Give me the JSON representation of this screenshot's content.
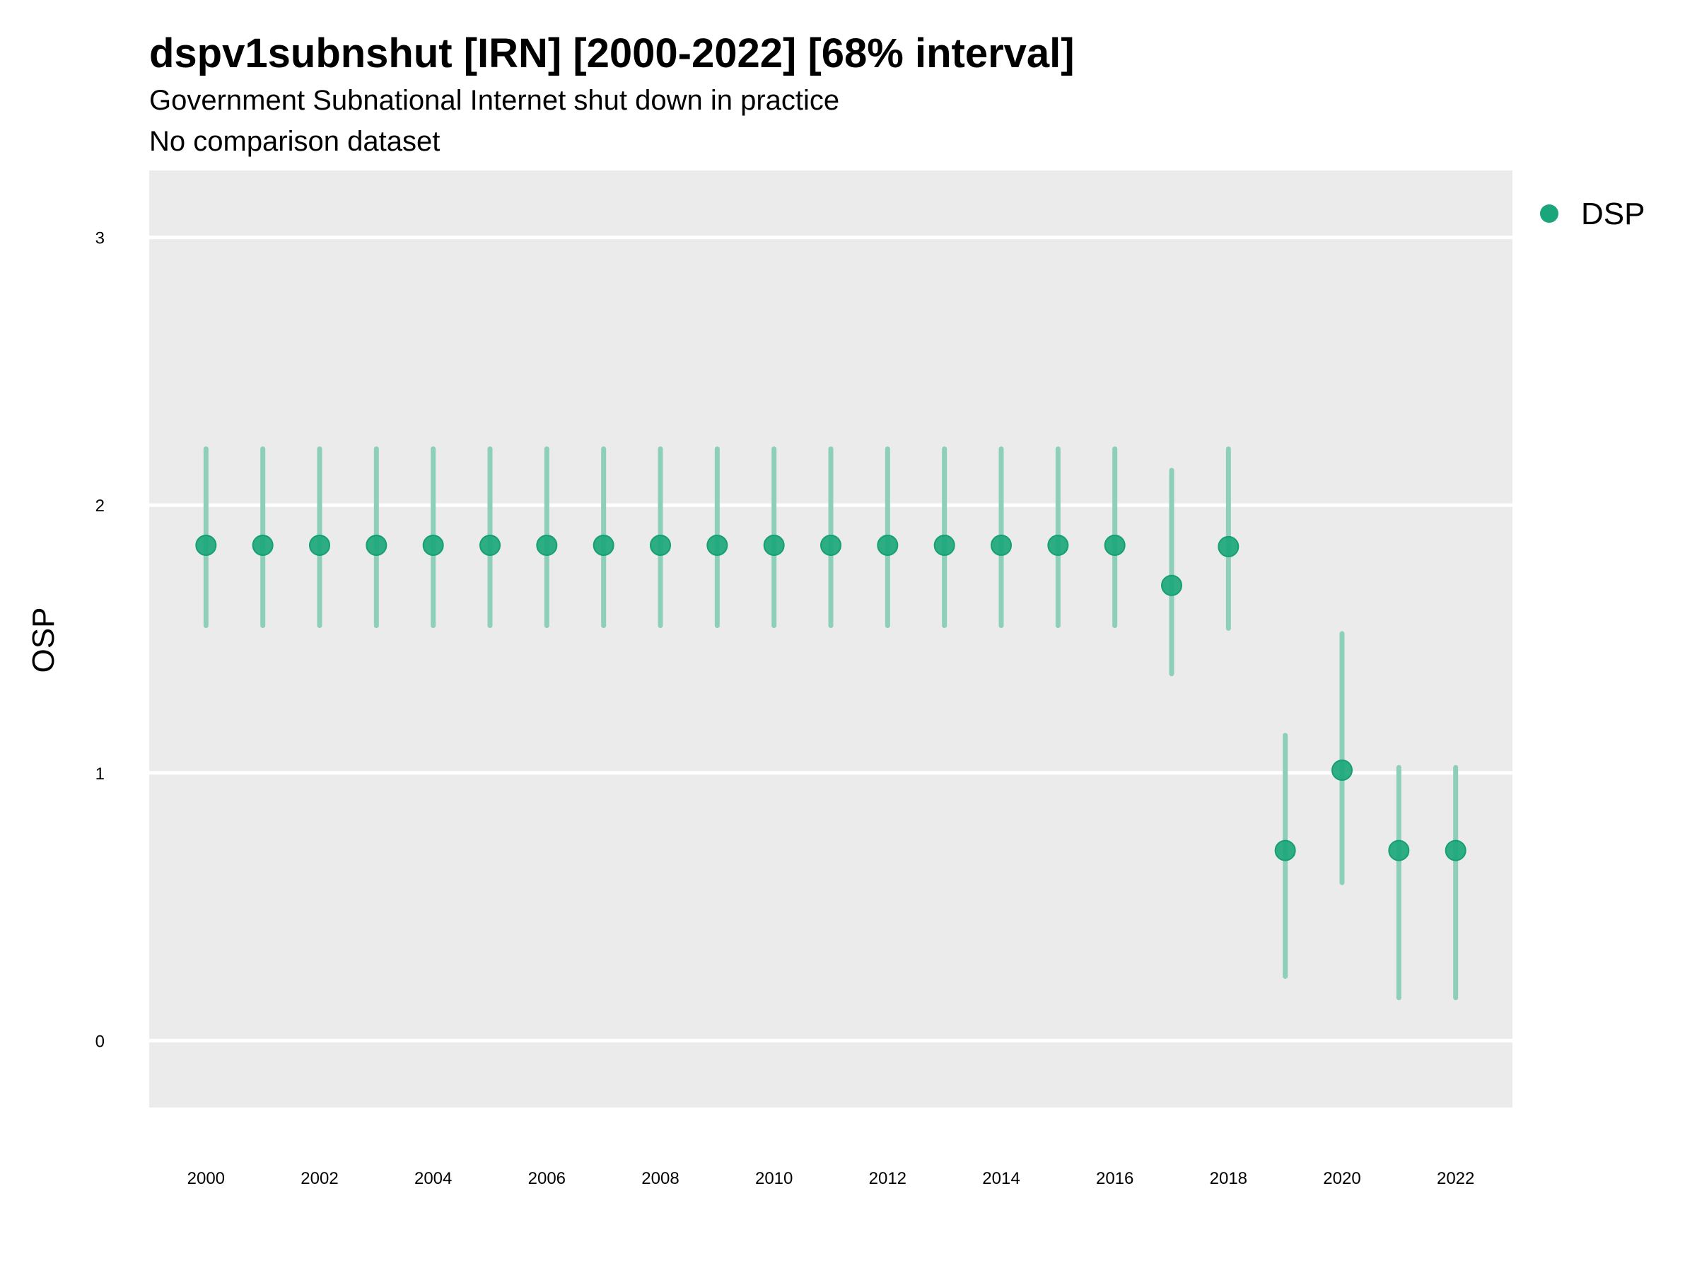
{
  "chart_data": {
    "type": "scatter",
    "title": "dspv1subnshut [IRN] [2000-2022] [68% interval]",
    "subtitle": "Government Subnational Internet shut down in practice",
    "caption": "No comparison dataset",
    "xlabel": "",
    "ylabel": "OSP",
    "xlim": [
      1999,
      2023
    ],
    "ylim": [
      -0.25,
      3.25
    ],
    "x_ticks": [
      "2000",
      "2002",
      "2004",
      "2006",
      "2008",
      "2010",
      "2012",
      "2014",
      "2016",
      "2018",
      "2020",
      "2022"
    ],
    "y_ticks": [
      "0",
      "1",
      "2",
      "3"
    ],
    "grid": true,
    "legend_position": "top-right",
    "colors": {
      "point": "#1aa67a",
      "interval": "#8ecfba",
      "panel": "#ebebeb",
      "grid": "#ffffff"
    },
    "series": [
      {
        "name": "DSP",
        "x": [
          2000,
          2001,
          2002,
          2003,
          2004,
          2005,
          2006,
          2007,
          2008,
          2009,
          2010,
          2011,
          2012,
          2013,
          2014,
          2015,
          2016,
          2017,
          2018,
          2019,
          2020,
          2021,
          2022
        ],
        "y": [
          1.85,
          1.85,
          1.85,
          1.85,
          1.85,
          1.85,
          1.85,
          1.85,
          1.85,
          1.85,
          1.85,
          1.85,
          1.85,
          1.85,
          1.85,
          1.85,
          1.85,
          1.7,
          1.845,
          0.71,
          1.01,
          0.71,
          0.71
        ],
        "lower": [
          1.55,
          1.55,
          1.55,
          1.55,
          1.55,
          1.55,
          1.55,
          1.55,
          1.55,
          1.55,
          1.55,
          1.55,
          1.55,
          1.55,
          1.55,
          1.55,
          1.55,
          1.37,
          1.54,
          0.24,
          0.59,
          0.16,
          0.16
        ],
        "upper": [
          2.21,
          2.21,
          2.21,
          2.21,
          2.21,
          2.21,
          2.21,
          2.21,
          2.21,
          2.21,
          2.21,
          2.21,
          2.21,
          2.21,
          2.21,
          2.21,
          2.21,
          2.13,
          2.21,
          1.14,
          1.52,
          1.02,
          1.02
        ]
      }
    ]
  }
}
